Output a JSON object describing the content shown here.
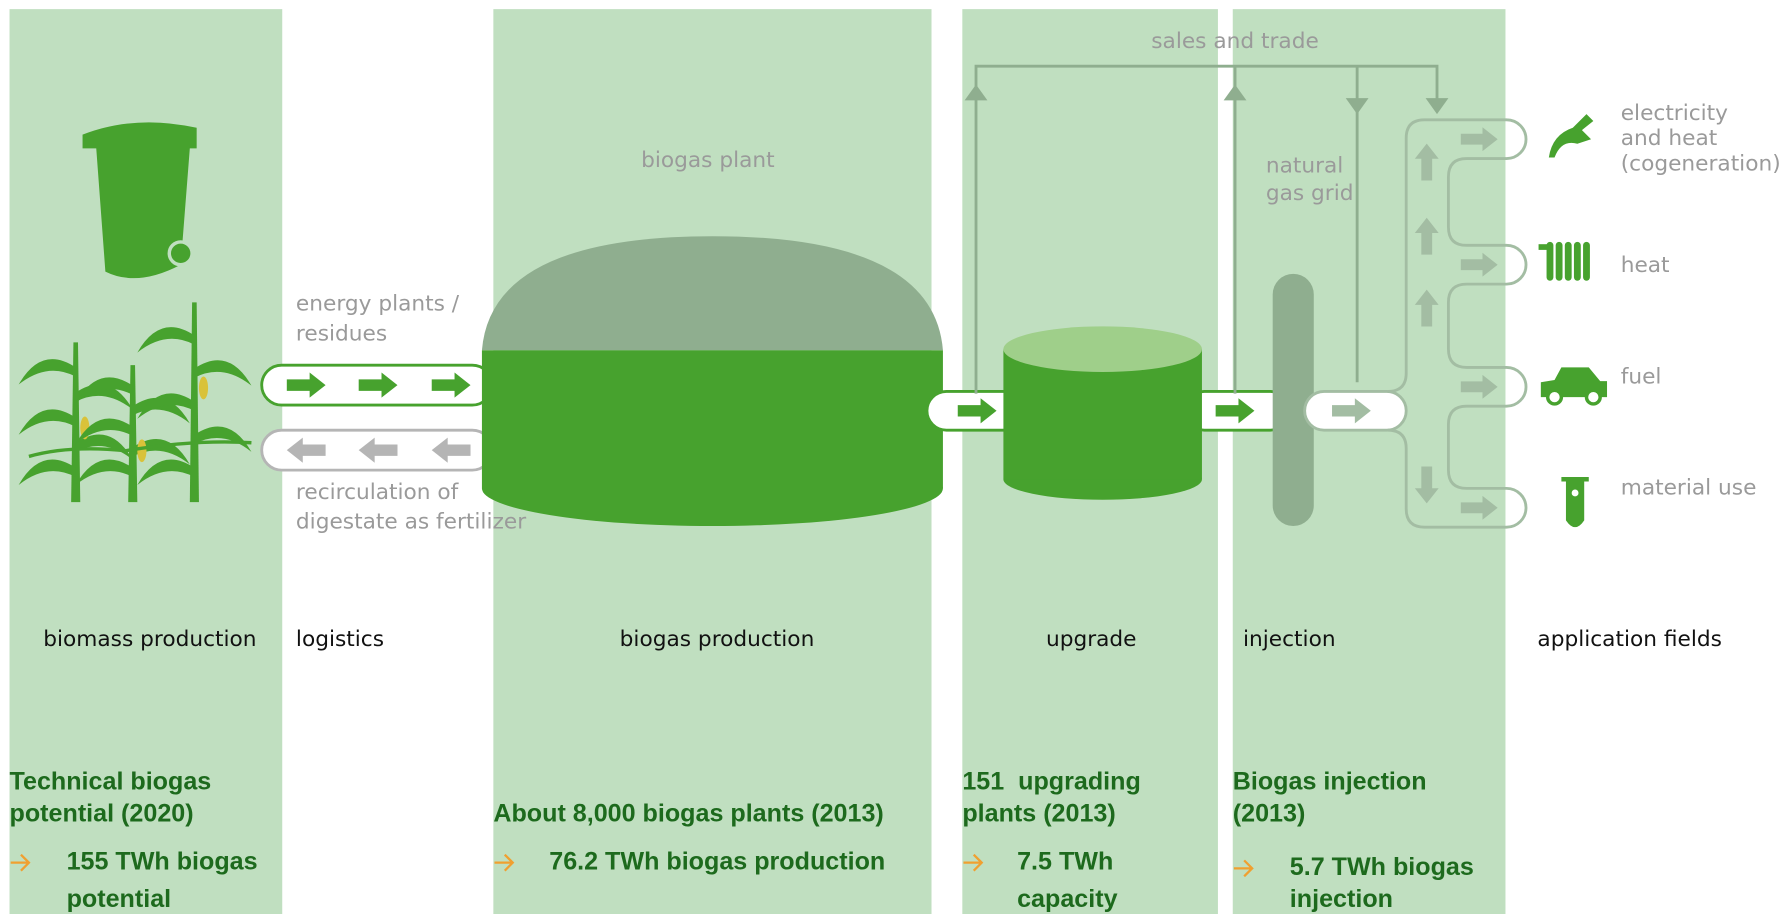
{
  "stages": [
    {
      "label": "biomass production",
      "stat": {
        "heading": [
          "Technical biogas",
          "potential (2020)"
        ],
        "detail": [
          "155 TWh biogas",
          "potential"
        ]
      }
    },
    {
      "label": "logistics"
    },
    {
      "label": "biogas production",
      "stat": {
        "heading": [
          "About 8,000 biogas plants (2013)"
        ],
        "detail": [
          "76.2 TWh biogas production"
        ]
      }
    },
    {
      "label": "upgrade",
      "stat": {
        "heading": [
          "151  upgrading",
          "plants (2013)"
        ],
        "detail": [
          "7.5 TWh",
          "capacity"
        ]
      }
    },
    {
      "label": "injection",
      "stat": {
        "heading": [
          "Biogas injection",
          "(2013)"
        ],
        "detail": [
          "5.7 TWh biogas",
          "injection"
        ]
      }
    },
    {
      "label": "application fields"
    }
  ],
  "annotations": {
    "biogas_plant": "biogas plant",
    "energy_plants": [
      "energy plants /",
      "residues"
    ],
    "recirculation": [
      "recirculation of",
      "digestate as fertilizer"
    ],
    "sales_and_trade": "sales and trade",
    "natural_gas_grid": [
      "natural",
      "gas grid"
    ]
  },
  "applications": [
    {
      "label": [
        "electricity",
        "and heat",
        "(cogeneration)"
      ]
    },
    {
      "label": [
        "heat"
      ]
    },
    {
      "label": [
        "fuel"
      ]
    },
    {
      "label": [
        "material use"
      ]
    }
  ]
}
